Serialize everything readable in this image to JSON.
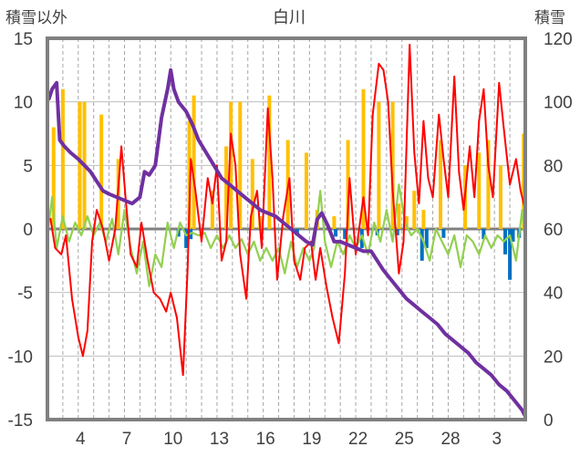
{
  "chart_data": {
    "type": "line",
    "title": "白川",
    "y_left_label": "積雪以外",
    "y_right_label": "積雪",
    "y_left_ticks": [
      "15",
      "10",
      "5",
      "0",
      "-5",
      "-10",
      "-15"
    ],
    "y_right_ticks": [
      "120",
      "100",
      "80",
      "60",
      "40",
      "20",
      "0"
    ],
    "ylim_left": [
      -15,
      15
    ],
    "ylim_right": [
      0,
      120
    ],
    "x_tick_labels": [
      "4",
      "7",
      "10",
      "13",
      "16",
      "19",
      "22",
      "25",
      "28",
      "3"
    ],
    "xlim": [
      1,
      32
    ],
    "grid": "vertical-dashed-daily",
    "colors": {
      "temperature": "#ff0000",
      "snow_depth": "#7030a0",
      "precip": "#ffc000",
      "change_positive": "#92d050",
      "change_negative": "#0070c0",
      "frame": "#808080"
    },
    "series": [
      {
        "key": "temperature",
        "points": [
          [
            1.2,
            0.8
          ],
          [
            1.5,
            -1.5
          ],
          [
            1.9,
            -2.0
          ],
          [
            2.2,
            -0.5
          ],
          [
            2.6,
            -5.5
          ],
          [
            3.0,
            -8.5
          ],
          [
            3.3,
            -10.0
          ],
          [
            3.6,
            -8.0
          ],
          [
            3.9,
            -1.0
          ],
          [
            4.2,
            1.5
          ],
          [
            4.6,
            0.0
          ],
          [
            5.0,
            -2.5
          ],
          [
            5.4,
            0.0
          ],
          [
            5.8,
            6.5
          ],
          [
            6.1,
            2.0
          ],
          [
            6.4,
            -2.0
          ],
          [
            6.8,
            -3.0
          ],
          [
            7.1,
            0.5
          ],
          [
            7.5,
            -2.5
          ],
          [
            7.9,
            -5.0
          ],
          [
            8.3,
            -5.5
          ],
          [
            8.7,
            -6.5
          ],
          [
            9.0,
            -5.0
          ],
          [
            9.4,
            -7.0
          ],
          [
            9.8,
            -11.5
          ],
          [
            10.1,
            -3.0
          ],
          [
            10.3,
            5.5
          ],
          [
            10.6,
            3.0
          ],
          [
            11.0,
            -1.0
          ],
          [
            11.4,
            4.0
          ],
          [
            11.7,
            2.0
          ],
          [
            12.0,
            5.0
          ],
          [
            12.3,
            -2.5
          ],
          [
            12.6,
            -1.0
          ],
          [
            12.9,
            7.5
          ],
          [
            13.2,
            5.0
          ],
          [
            13.5,
            -2.0
          ],
          [
            13.9,
            -5.5
          ],
          [
            14.2,
            1.0
          ],
          [
            14.6,
            3.0
          ],
          [
            14.9,
            -1.5
          ],
          [
            15.3,
            9.5
          ],
          [
            15.6,
            4.0
          ],
          [
            15.9,
            -4.0
          ],
          [
            16.3,
            1.0
          ],
          [
            16.7,
            4.0
          ],
          [
            17.0,
            -2.5
          ],
          [
            17.4,
            -4.0
          ],
          [
            17.7,
            -1.5
          ],
          [
            18.1,
            -1.0
          ],
          [
            18.4,
            -4.0
          ],
          [
            18.7,
            -1.5
          ],
          [
            19.1,
            -4.5
          ],
          [
            19.5,
            -7.0
          ],
          [
            19.9,
            -9.0
          ],
          [
            20.3,
            -3.5
          ],
          [
            20.6,
            4.0
          ],
          [
            21.0,
            -2.0
          ],
          [
            21.5,
            2.5
          ],
          [
            21.8,
            -0.5
          ],
          [
            22.1,
            9.0
          ],
          [
            22.5,
            13.0
          ],
          [
            22.8,
            12.5
          ],
          [
            23.1,
            10.0
          ],
          [
            23.4,
            3.0
          ],
          [
            23.8,
            -3.5
          ],
          [
            24.1,
            -1.0
          ],
          [
            24.5,
            14.5
          ],
          [
            24.8,
            6.0
          ],
          [
            25.1,
            2.0
          ],
          [
            25.4,
            8.5
          ],
          [
            25.7,
            4.0
          ],
          [
            26.0,
            2.5
          ],
          [
            26.4,
            9.0
          ],
          [
            26.7,
            5.5
          ],
          [
            27.0,
            2.5
          ],
          [
            27.4,
            12.0
          ],
          [
            27.7,
            4.5
          ],
          [
            28.0,
            1.5
          ],
          [
            28.4,
            6.5
          ],
          [
            28.7,
            2.5
          ],
          [
            29.0,
            8.5
          ],
          [
            29.3,
            11.0
          ],
          [
            29.6,
            5.0
          ],
          [
            29.9,
            2.5
          ],
          [
            30.3,
            11.5
          ],
          [
            30.6,
            8.0
          ],
          [
            31.0,
            3.5
          ],
          [
            31.4,
            5.5
          ],
          [
            31.7,
            3.0
          ],
          [
            32.0,
            1.5
          ]
        ]
      },
      {
        "key": "snow_depth",
        "points": [
          [
            1.1,
            101
          ],
          [
            1.3,
            104
          ],
          [
            1.6,
            106
          ],
          [
            1.8,
            88
          ],
          [
            2.1,
            86
          ],
          [
            2.5,
            84
          ],
          [
            3.0,
            82
          ],
          [
            3.4,
            80
          ],
          [
            3.8,
            78
          ],
          [
            4.2,
            75
          ],
          [
            4.6,
            72
          ],
          [
            5.0,
            71
          ],
          [
            5.5,
            70
          ],
          [
            6.0,
            69
          ],
          [
            6.5,
            68
          ],
          [
            7.0,
            70
          ],
          [
            7.3,
            78
          ],
          [
            7.6,
            77
          ],
          [
            8.0,
            80
          ],
          [
            8.4,
            95
          ],
          [
            8.8,
            104
          ],
          [
            9.0,
            110
          ],
          [
            9.2,
            104
          ],
          [
            9.5,
            100
          ],
          [
            10.0,
            97
          ],
          [
            10.4,
            93
          ],
          [
            10.8,
            88
          ],
          [
            11.3,
            84
          ],
          [
            11.8,
            80
          ],
          [
            12.3,
            76
          ],
          [
            12.8,
            74
          ],
          [
            13.3,
            72
          ],
          [
            13.8,
            70
          ],
          [
            14.3,
            68
          ],
          [
            14.8,
            66
          ],
          [
            15.3,
            65
          ],
          [
            15.8,
            64
          ],
          [
            16.3,
            62
          ],
          [
            16.8,
            60
          ],
          [
            17.3,
            58
          ],
          [
            17.8,
            56
          ],
          [
            18.2,
            55
          ],
          [
            18.5,
            63
          ],
          [
            18.8,
            65
          ],
          [
            19.2,
            61
          ],
          [
            19.6,
            56
          ],
          [
            20.0,
            56
          ],
          [
            20.5,
            55
          ],
          [
            21.0,
            54
          ],
          [
            21.5,
            53
          ],
          [
            22.0,
            53
          ],
          [
            22.4,
            50
          ],
          [
            22.8,
            47
          ],
          [
            23.3,
            44
          ],
          [
            23.8,
            41
          ],
          [
            24.3,
            38
          ],
          [
            24.8,
            36
          ],
          [
            25.3,
            34
          ],
          [
            25.8,
            32
          ],
          [
            26.3,
            30
          ],
          [
            26.8,
            27
          ],
          [
            27.3,
            25
          ],
          [
            27.8,
            23
          ],
          [
            28.3,
            21
          ],
          [
            28.8,
            18
          ],
          [
            29.3,
            16
          ],
          [
            29.8,
            14
          ],
          [
            30.3,
            11
          ],
          [
            30.8,
            9
          ],
          [
            31.3,
            6
          ],
          [
            31.8,
            3
          ],
          [
            32.0,
            1
          ]
        ]
      },
      {
        "key": "change",
        "points": [
          [
            1.0,
            -0.5
          ],
          [
            1.3,
            2.5
          ],
          [
            1.6,
            -1.5
          ],
          [
            2.0,
            1.0
          ],
          [
            2.4,
            -1.0
          ],
          [
            2.8,
            0.5
          ],
          [
            3.2,
            -0.5
          ],
          [
            3.6,
            1.0
          ],
          [
            4.0,
            -0.5
          ],
          [
            4.4,
            0.5
          ],
          [
            4.8,
            -1.0
          ],
          [
            5.2,
            0.8
          ],
          [
            5.6,
            -2.0
          ],
          [
            6.0,
            1.5
          ],
          [
            6.4,
            -1.5
          ],
          [
            6.8,
            -3.5
          ],
          [
            7.2,
            -1.0
          ],
          [
            7.6,
            -4.5
          ],
          [
            8.0,
            -2.0
          ],
          [
            8.4,
            -3.0
          ],
          [
            8.8,
            0.5
          ],
          [
            9.2,
            -1.5
          ],
          [
            9.6,
            0.5
          ],
          [
            10.0,
            -0.5
          ],
          [
            10.4,
            -0.3
          ],
          [
            10.8,
            -0.5
          ],
          [
            11.2,
            -0.3
          ],
          [
            11.6,
            -1.5
          ],
          [
            12.0,
            -0.5
          ],
          [
            12.4,
            -1.5
          ],
          [
            12.8,
            -0.5
          ],
          [
            13.2,
            -1.5
          ],
          [
            13.6,
            -0.8
          ],
          [
            14.0,
            -2.0
          ],
          [
            14.4,
            -1.0
          ],
          [
            14.8,
            -2.5
          ],
          [
            15.2,
            -1.5
          ],
          [
            15.6,
            -2.5
          ],
          [
            16.0,
            -1.5
          ],
          [
            16.4,
            -3.5
          ],
          [
            16.8,
            -1.0
          ],
          [
            17.2,
            -3.0
          ],
          [
            17.6,
            -1.5
          ],
          [
            18.0,
            -2.5
          ],
          [
            18.3,
            -1.5
          ],
          [
            18.7,
            3.0
          ],
          [
            19.0,
            -1.0
          ],
          [
            19.4,
            -3.0
          ],
          [
            19.8,
            -1.0
          ],
          [
            20.2,
            -2.0
          ],
          [
            20.6,
            -0.5
          ],
          [
            21.0,
            -1.5
          ],
          [
            21.4,
            -0.5
          ],
          [
            21.8,
            -2.0
          ],
          [
            22.2,
            0.5
          ],
          [
            22.6,
            -1.0
          ],
          [
            23.0,
            1.5
          ],
          [
            23.4,
            -1.0
          ],
          [
            23.8,
            3.5
          ],
          [
            24.2,
            0.5
          ],
          [
            24.6,
            -0.5
          ],
          [
            25.0,
            0.0
          ],
          [
            25.4,
            -1.0
          ],
          [
            25.8,
            -2.5
          ],
          [
            26.2,
            0.0
          ],
          [
            26.6,
            -1.0
          ],
          [
            27.0,
            -2.0
          ],
          [
            27.4,
            -0.5
          ],
          [
            27.8,
            -3.0
          ],
          [
            28.2,
            -0.5
          ],
          [
            28.6,
            -1.0
          ],
          [
            29.0,
            -2.0
          ],
          [
            29.4,
            -0.5
          ],
          [
            29.8,
            -1.5
          ],
          [
            30.2,
            -0.5
          ],
          [
            30.6,
            -1.0
          ],
          [
            31.0,
            -0.5
          ],
          [
            31.4,
            -2.5
          ],
          [
            31.8,
            1.5
          ],
          [
            32.0,
            -1.0
          ]
        ]
      }
    ],
    "precip_bars": [
      [
        1.4,
        8.0
      ],
      [
        2.0,
        11.0
      ],
      [
        3.1,
        10.0
      ],
      [
        3.4,
        10.0
      ],
      [
        4.5,
        9.0
      ],
      [
        5.6,
        5.5
      ],
      [
        10.2,
        8.5
      ],
      [
        10.5,
        10.5
      ],
      [
        11.7,
        3.0
      ],
      [
        12.6,
        6.5
      ],
      [
        12.9,
        10.0
      ],
      [
        13.5,
        10.0
      ],
      [
        14.3,
        5.5
      ],
      [
        14.8,
        1.0
      ],
      [
        15.4,
        10.5
      ],
      [
        16.6,
        7.0
      ],
      [
        17.8,
        6.0
      ],
      [
        18.5,
        1.5
      ],
      [
        19.6,
        1.0
      ],
      [
        20.5,
        7.0
      ],
      [
        21.5,
        11.0
      ],
      [
        22.5,
        10.0
      ],
      [
        23.4,
        10.0
      ],
      [
        23.8,
        2.0
      ],
      [
        24.3,
        1.0
      ],
      [
        24.8,
        3.0
      ],
      [
        25.4,
        1.5
      ],
      [
        26.5,
        7.0
      ],
      [
        28.1,
        5.0
      ],
      [
        29.0,
        6.0
      ],
      [
        29.6,
        7.0
      ],
      [
        30.4,
        5.0
      ],
      [
        31.9,
        7.5
      ]
    ],
    "change_neg_bars": [
      [
        9.5,
        -0.6
      ],
      [
        10.0,
        -1.5
      ],
      [
        10.3,
        -0.8
      ],
      [
        17.2,
        -0.5
      ],
      [
        19.7,
        -0.6
      ],
      [
        20.3,
        -0.8
      ],
      [
        21.4,
        -1.5
      ],
      [
        22.4,
        -0.5
      ],
      [
        23.7,
        -0.5
      ],
      [
        25.3,
        -2.5
      ],
      [
        25.6,
        -1.5
      ],
      [
        26.7,
        -0.7
      ],
      [
        29.3,
        -0.8
      ],
      [
        30.7,
        -2.0
      ],
      [
        31.0,
        -4.0
      ],
      [
        31.2,
        -1.0
      ],
      [
        31.6,
        -0.7
      ],
      [
        32.0,
        -0.5
      ]
    ]
  }
}
